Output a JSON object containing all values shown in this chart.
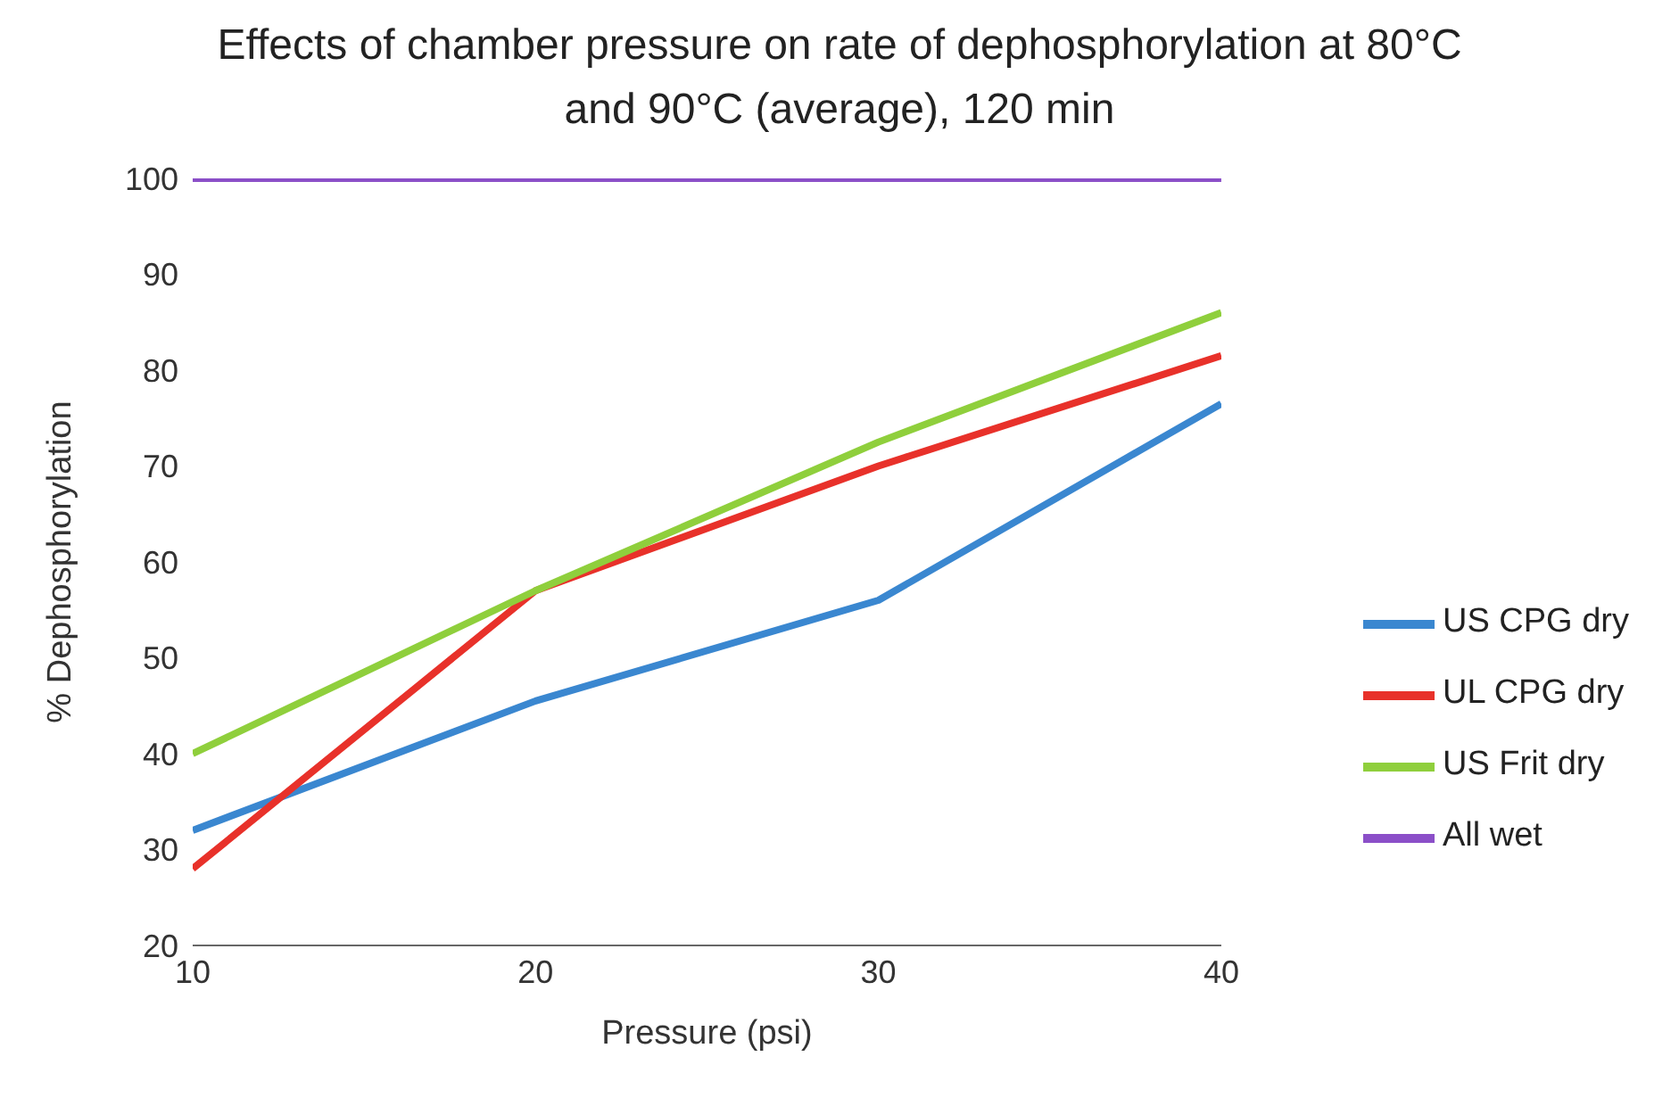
{
  "chart_data": {
    "type": "line",
    "title": "Effects of chamber pressure on rate of dephosphorylation at 80°C and 90°C (average), 120 min",
    "xlabel": "Pressure (psi)",
    "ylabel": "% Dephosphorylation",
    "x": [
      10,
      20,
      30,
      40
    ],
    "xlim": [
      10,
      40
    ],
    "xticks": [
      10,
      20,
      30,
      40
    ],
    "ylim": [
      20,
      100
    ],
    "yticks": [
      20,
      30,
      40,
      50,
      60,
      70,
      80,
      90,
      100
    ],
    "grid": false,
    "legend": "right",
    "marker": "none",
    "series": [
      {
        "name": "US CPG dry",
        "color": "#3a87d0",
        "values": [
          32,
          45.5,
          56,
          76.5
        ]
      },
      {
        "name": "UL CPG dry",
        "color": "#e8312a",
        "values": [
          28,
          57,
          70,
          81.5
        ]
      },
      {
        "name": "US Frit dry",
        "color": "#8fcf3c",
        "values": [
          40,
          57,
          72.5,
          86
        ]
      },
      {
        "name": "All wet",
        "color": "#8b4fc8",
        "values": [
          100,
          100,
          100,
          100
        ]
      }
    ]
  }
}
